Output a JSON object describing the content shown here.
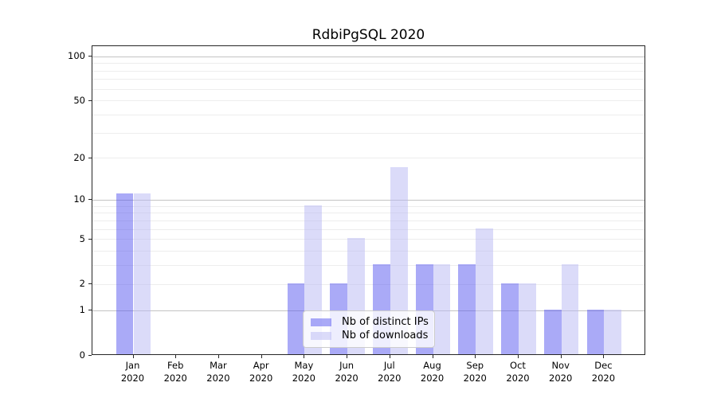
{
  "chart_data": {
    "type": "bar",
    "title": "RdbiPgSQL 2020",
    "year_label": "2020",
    "categories": [
      "Jan",
      "Feb",
      "Mar",
      "Apr",
      "May",
      "Jun",
      "Jul",
      "Aug",
      "Sep",
      "Oct",
      "Nov",
      "Dec"
    ],
    "series": [
      {
        "name": "Nb of distinct IPs",
        "color": "rgba(85,85,239,0.5)",
        "values": [
          11,
          0,
          0,
          0,
          2,
          2,
          3,
          3,
          3,
          2,
          1,
          1
        ]
      },
      {
        "name": "Nb of downloads",
        "color": "rgba(183,183,243,0.5)",
        "values": [
          11,
          0,
          0,
          0,
          9,
          5,
          17,
          3,
          6,
          2,
          3,
          1
        ]
      }
    ],
    "y_axis": {
      "scale": "log1p",
      "ticks": [
        0,
        1,
        2,
        5,
        10,
        20,
        50,
        100
      ],
      "range": [
        0,
        100
      ],
      "major_gridlines": [
        1,
        10,
        100
      ],
      "minor_gridlines": [
        2,
        3,
        4,
        5,
        6,
        7,
        8,
        9,
        20,
        30,
        40,
        50,
        60,
        70,
        80,
        90
      ]
    },
    "legend": {
      "position": "lower center"
    },
    "colors": {
      "bar_distinct_ips": "rgba(85,85,239,0.5)",
      "bar_downloads": "rgba(183,183,243,0.5)",
      "major_grid": "#c3c3c3",
      "minor_grid": "#ededed",
      "spine": "#262626"
    }
  }
}
